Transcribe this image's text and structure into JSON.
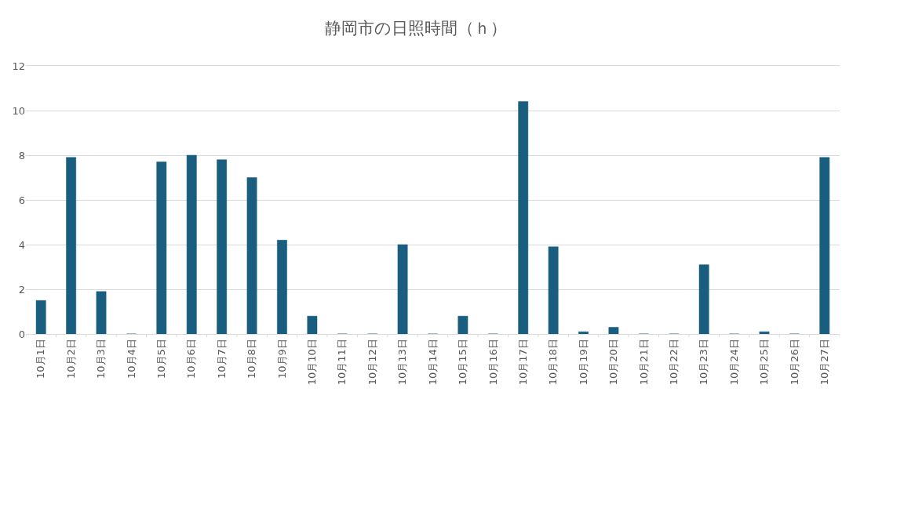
{
  "chart_data": {
    "type": "bar",
    "title": "静岡市の日照時間（ｈ）",
    "categories": [
      "10月1日",
      "10月2日",
      "10月3日",
      "10月4日",
      "10月5日",
      "10月6日",
      "10月7日",
      "10月8日",
      "10月9日",
      "10月10日",
      "10月11日",
      "10月12日",
      "10月13日",
      "10月14日",
      "10月15日",
      "10月16日",
      "10月17日",
      "10月18日",
      "10月19日",
      "10月20日",
      "10月21日",
      "10月22日",
      "10月23日",
      "10月24日",
      "10月25日",
      "10月26日",
      "10月27日"
    ],
    "values": [
      1.5,
      7.9,
      1.9,
      0,
      7.7,
      8.0,
      7.8,
      7.0,
      4.2,
      0.8,
      0,
      0,
      4.0,
      0,
      0.8,
      0,
      10.4,
      3.9,
      0.1,
      0.3,
      0,
      0,
      3.1,
      0,
      0.1,
      0,
      7.9
    ],
    "color": "#195e7e",
    "ylim": [
      0,
      12
    ],
    "yticks": [
      0,
      2,
      4,
      6,
      8,
      10,
      12
    ],
    "grid": "y"
  }
}
